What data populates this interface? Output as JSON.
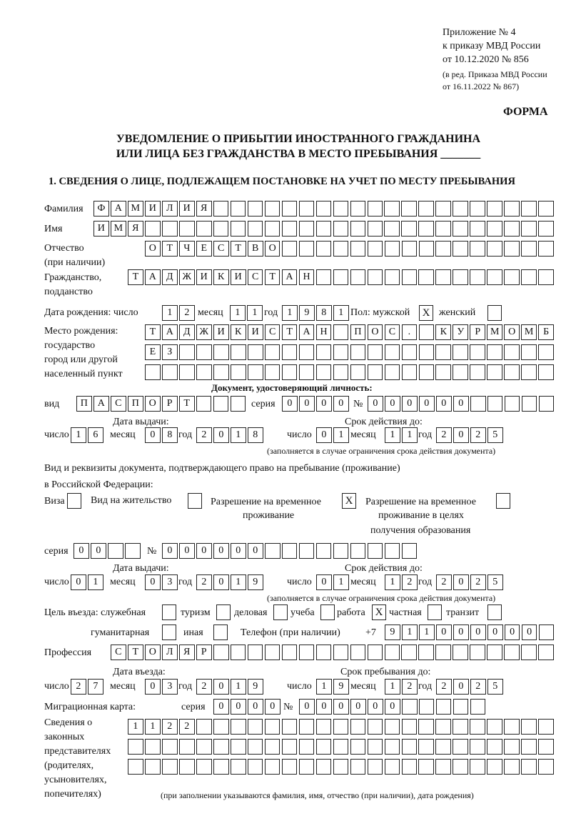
{
  "header": {
    "appendix": "Приложение № 4",
    "order_ref": "к приказу МВД России",
    "order_date": "от 10.12.2020 № 856",
    "edition_1": "(в ред. Приказа МВД России",
    "edition_2": "от 16.11.2022 № 867)",
    "form_label": "ФОРМА",
    "title_1": "УВЕДОМЛЕНИЕ О ПРИБЫТИИ ИНОСТРАННОГО ГРАЖДАНИНА",
    "title_2": "ИЛИ ЛИЦА БЕЗ ГРАЖДАНСТВА В МЕСТО ПРЕБЫВАНИЯ _______",
    "section_1": "1. СВЕДЕНИЯ О ЛИЦЕ, ПОДЛЕЖАЩЕМ ПОСТАНОВКЕ НА УЧЕТ ПО МЕСТУ ПРЕБЫВАНИЯ"
  },
  "person": {
    "surname_label": "Фамилия",
    "surname": [
      "Ф",
      "А",
      "М",
      "И",
      "Л",
      "И",
      "Я",
      "",
      "",
      "",
      "",
      "",
      "",
      "",
      "",
      "",
      "",
      "",
      "",
      "",
      "",
      "",
      "",
      "",
      "",
      "",
      ""
    ],
    "name_label": "Имя",
    "name": [
      "И",
      "М",
      "Я",
      "",
      "",
      "",
      "",
      "",
      "",
      "",
      "",
      "",
      "",
      "",
      "",
      "",
      "",
      "",
      "",
      "",
      "",
      "",
      "",
      "",
      "",
      "",
      ""
    ],
    "patronymic_label_1": "Отчество",
    "patronymic_label_2": "(при наличии)",
    "patronymic": [
      "О",
      "Т",
      "Ч",
      "Е",
      "С",
      "Т",
      "В",
      "О",
      "",
      "",
      "",
      "",
      "",
      "",
      "",
      "",
      "",
      "",
      "",
      "",
      "",
      "",
      "",
      ""
    ],
    "citizenship_label_1": "Гражданство,",
    "citizenship_label_2": "подданство",
    "citizenship": [
      "Т",
      "А",
      "Д",
      "Ж",
      "И",
      "К",
      "И",
      "С",
      "Т",
      "А",
      "Н",
      "",
      "",
      "",
      "",
      "",
      "",
      "",
      "",
      "",
      "",
      "",
      "",
      "",
      ""
    ],
    "birth_label": "Дата рождения:  число",
    "birth_day": [
      "1",
      "2"
    ],
    "month_label": "месяц",
    "birth_month": [
      "1",
      "1"
    ],
    "year_label": "год",
    "birth_year": [
      "1",
      "9",
      "8",
      "1"
    ],
    "sex_label": "Пол: мужской",
    "male": "X",
    "female_label": "женский",
    "female": "",
    "birthplace_label_1": "Место рождения:",
    "birthplace_label_2": "государство",
    "birthplace_label_3": "город или другой",
    "birthplace_label_4": "населенный пункт",
    "birthplace_1": [
      "Т",
      "А",
      "Д",
      "Ж",
      "И",
      "К",
      "И",
      "С",
      "Т",
      "А",
      "Н",
      "",
      "П",
      "О",
      "С",
      ".",
      "",
      "К",
      "У",
      "Р",
      "М",
      "О",
      "М",
      "Б"
    ],
    "birthplace_2": [
      "Е",
      "З",
      "",
      "",
      "",
      "",
      "",
      "",
      "",
      "",
      "",
      "",
      "",
      "",
      "",
      "",
      "",
      "",
      "",
      "",
      "",
      "",
      "",
      ""
    ],
    "birthplace_3": [
      "",
      "",
      "",
      "",
      "",
      "",
      "",
      "",
      "",
      "",
      "",
      "",
      "",
      "",
      "",
      "",
      "",
      "",
      "",
      "",
      "",
      "",
      "",
      ""
    ]
  },
  "id_doc": {
    "heading": "Документ, удостоверяющий личность:",
    "type_label": "вид",
    "type": [
      "П",
      "А",
      "С",
      "П",
      "О",
      "Р",
      "Т",
      "",
      "",
      ""
    ],
    "series_label": "серия",
    "series": [
      "0",
      "0",
      "0",
      "0"
    ],
    "number_label": "№",
    "number": [
      "0",
      "0",
      "0",
      "0",
      "0",
      "0",
      "",
      "",
      "",
      "",
      ""
    ],
    "issue_label": "Дата выдачи:",
    "valid_label": "Срок действия до:",
    "day_label": "число",
    "month_label": "месяц",
    "year_label": "год",
    "issue_day": [
      "1",
      "6"
    ],
    "issue_month": [
      "0",
      "8"
    ],
    "issue_year": [
      "2",
      "0",
      "1",
      "8"
    ],
    "valid_day": [
      "0",
      "1"
    ],
    "valid_month": [
      "1",
      "1"
    ],
    "valid_year": [
      "2",
      "0",
      "2",
      "5"
    ],
    "note": "(заполняется в случае ограничения срока действия документа)"
  },
  "stay_doc": {
    "heading_1": "Вид и реквизиты документа, подтверждающего право на пребывание (проживание)",
    "heading_2": "в Российской Федерации:",
    "visa_label": "Виза",
    "visa": "",
    "residence_label": "Вид на жительство",
    "residence": "",
    "trp_label_1": "Разрешение на временное",
    "trp_label_2": "проживание",
    "trp": "X",
    "trp_edu_label_1": "Разрешение на временное",
    "trp_edu_label_2": "проживание в целях",
    "trp_edu_label_3": "получения образования",
    "trp_edu": "",
    "series_label": "серия",
    "series": [
      "0",
      "0",
      "",
      ""
    ],
    "number_label": "№",
    "number": [
      "0",
      "0",
      "0",
      "0",
      "0",
      "0",
      "",
      "",
      "",
      "",
      "",
      "",
      "",
      "",
      ""
    ],
    "issue_label": "Дата выдачи:",
    "valid_label": "Срок действия до:",
    "day_label": "число",
    "month_label": "месяц",
    "year_label": "год",
    "issue_day": [
      "0",
      "1"
    ],
    "issue_month": [
      "0",
      "3"
    ],
    "issue_year": [
      "2",
      "0",
      "1",
      "9"
    ],
    "valid_day": [
      "0",
      "1"
    ],
    "valid_month": [
      "1",
      "2"
    ],
    "valid_year": [
      "2",
      "0",
      "2",
      "5"
    ],
    "note": "(заполняется в случае ограничения срока действия документа)"
  },
  "purpose": {
    "official_label": "Цель въезда: служебная",
    "official": "",
    "tourism_label": "туризм",
    "tourism": "",
    "business_label": "деловая",
    "business": "",
    "study_label": "учеба",
    "study": "",
    "work_label": "работа",
    "work": "X",
    "private_label": "частная",
    "private": "",
    "transit_label": "транзит",
    "transit": "",
    "humanitarian_label": "гуманитарная",
    "humanitarian": "",
    "other_label": "иная",
    "other": "",
    "phone_label": "Телефон (при наличии)",
    "phone_prefix": "+7",
    "phone": [
      "9",
      "1",
      "1",
      "0",
      "0",
      "0",
      "0",
      "0",
      "0",
      ""
    ]
  },
  "profession": {
    "label": "Профессия",
    "value": [
      "С",
      "Т",
      "О",
      "Л",
      "Я",
      "Р",
      "",
      "",
      "",
      "",
      "",
      "",
      "",
      "",
      "",
      "",
      "",
      "",
      "",
      "",
      "",
      "",
      "",
      "",
      "",
      ""
    ]
  },
  "entry": {
    "entry_label": "Дата въезда:",
    "stay_until_label": "Срок пребывания до:",
    "day_label": "число",
    "month_label": "месяц",
    "year_label": "год",
    "entry_day": [
      "2",
      "7"
    ],
    "entry_month": [
      "0",
      "3"
    ],
    "entry_year": [
      "2",
      "0",
      "1",
      "9"
    ],
    "until_day": [
      "1",
      "9"
    ],
    "until_month": [
      "1",
      "2"
    ],
    "until_year": [
      "2",
      "0",
      "2",
      "5"
    ]
  },
  "migration_card": {
    "label": "Миграционная карта:",
    "series_label": "серия",
    "series": [
      "0",
      "0",
      "0",
      "0"
    ],
    "number_label": "№",
    "number": [
      "0",
      "0",
      "0",
      "0",
      "0",
      "0",
      "",
      "",
      "",
      "",
      ""
    ]
  },
  "representatives": {
    "label_1": "Сведения о",
    "label_2": "законных",
    "label_3": "представителях",
    "label_4": "(родителях,",
    "label_5": "усыновителях,",
    "label_6": "попечителях)",
    "row_1": [
      "1",
      "1",
      "2",
      "2",
      "",
      "",
      "",
      "",
      "",
      "",
      "",
      "",
      "",
      "",
      "",
      "",
      "",
      "",
      "",
      "",
      "",
      "",
      "",
      "",
      ""
    ],
    "row_2": [
      "",
      "",
      "",
      "",
      "",
      "",
      "",
      "",
      "",
      "",
      "",
      "",
      "",
      "",
      "",
      "",
      "",
      "",
      "",
      "",
      "",
      "",
      "",
      "",
      ""
    ],
    "row_3": [
      "",
      "",
      "",
      "",
      "",
      "",
      "",
      "",
      "",
      "",
      "",
      "",
      "",
      "",
      "",
      "",
      "",
      "",
      "",
      "",
      "",
      "",
      "",
      "",
      ""
    ],
    "note": "(при заполнении указываются фамилия, имя, отчество (при наличии), дата рождения)"
  }
}
